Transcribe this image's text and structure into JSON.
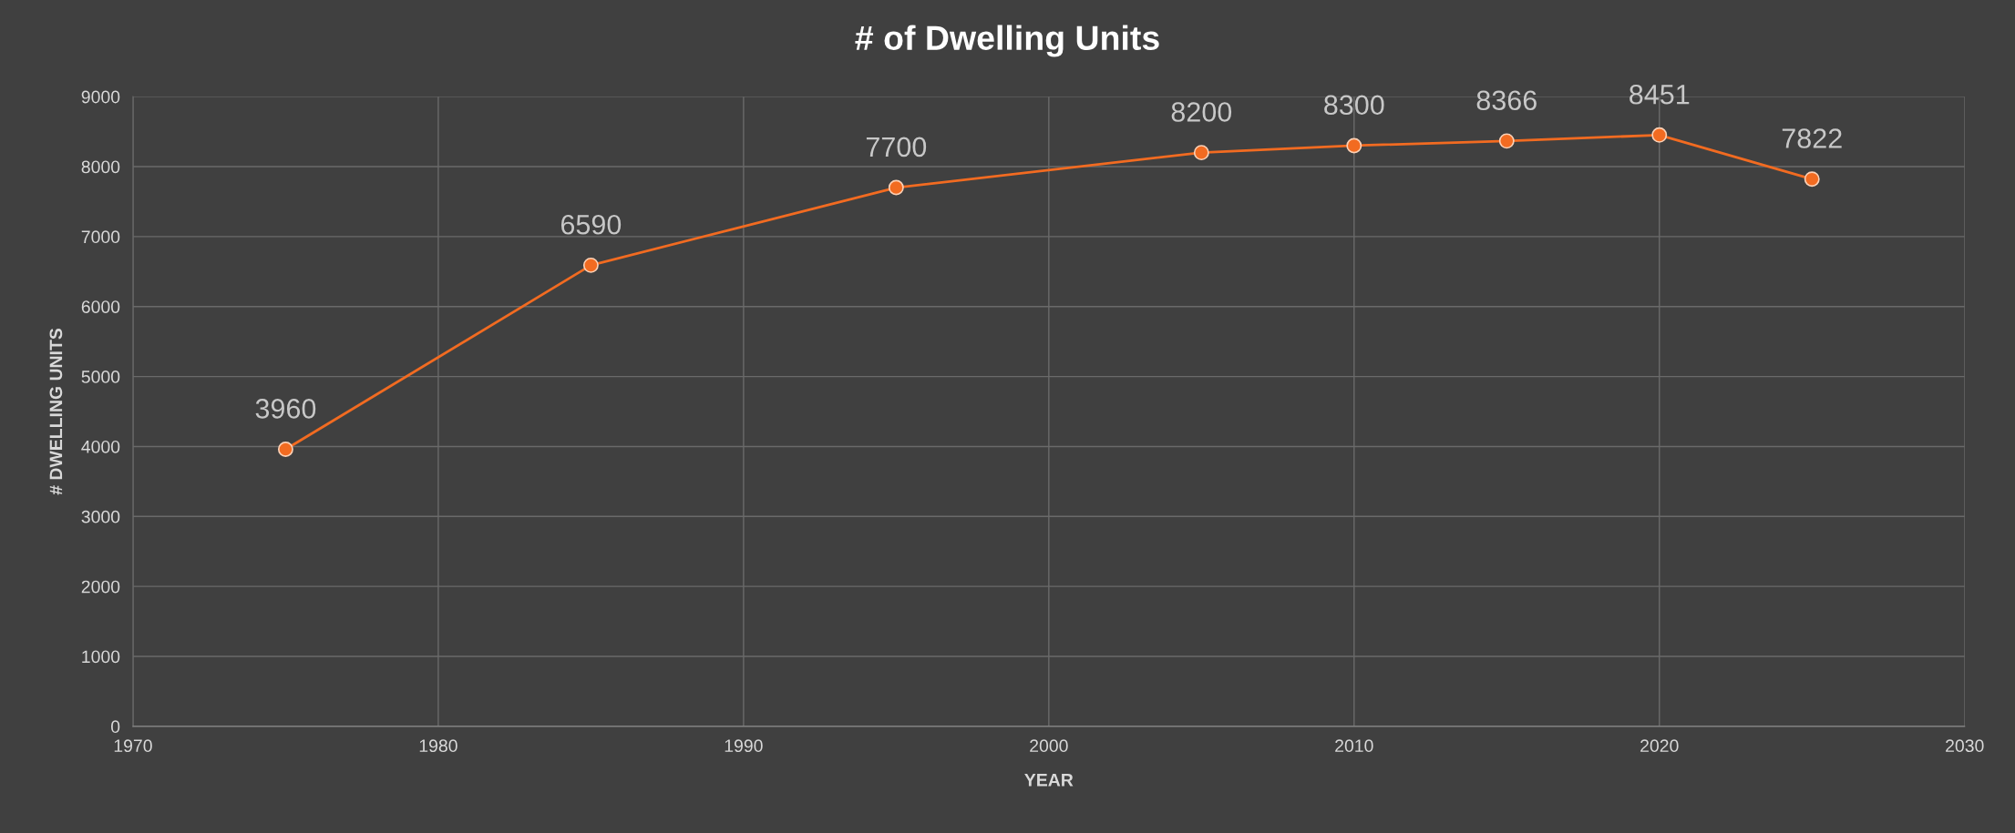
{
  "chart_data": {
    "type": "line",
    "title": "# of Dwelling Units",
    "xlabel": "YEAR",
    "ylabel": "# DWELLING UNITS",
    "x": [
      1975,
      1985,
      1995,
      2005,
      2010,
      2015,
      2020,
      2025
    ],
    "series": [
      {
        "color": "#f26b21",
        "values": [
          3960,
          6590,
          7700,
          8200,
          8300,
          8366,
          8451,
          7822
        ]
      }
    ],
    "xlim": [
      1970,
      2030
    ],
    "xticks": [
      1970,
      1980,
      1990,
      2000,
      2010,
      2020,
      2030
    ],
    "ylim": [
      0,
      9000
    ],
    "yticks": [
      0,
      1000,
      2000,
      3000,
      4000,
      5000,
      6000,
      7000,
      8000,
      9000
    ],
    "grid": true,
    "marker": "circle",
    "line_style": "solid",
    "data_labels": true,
    "legend": false
  }
}
